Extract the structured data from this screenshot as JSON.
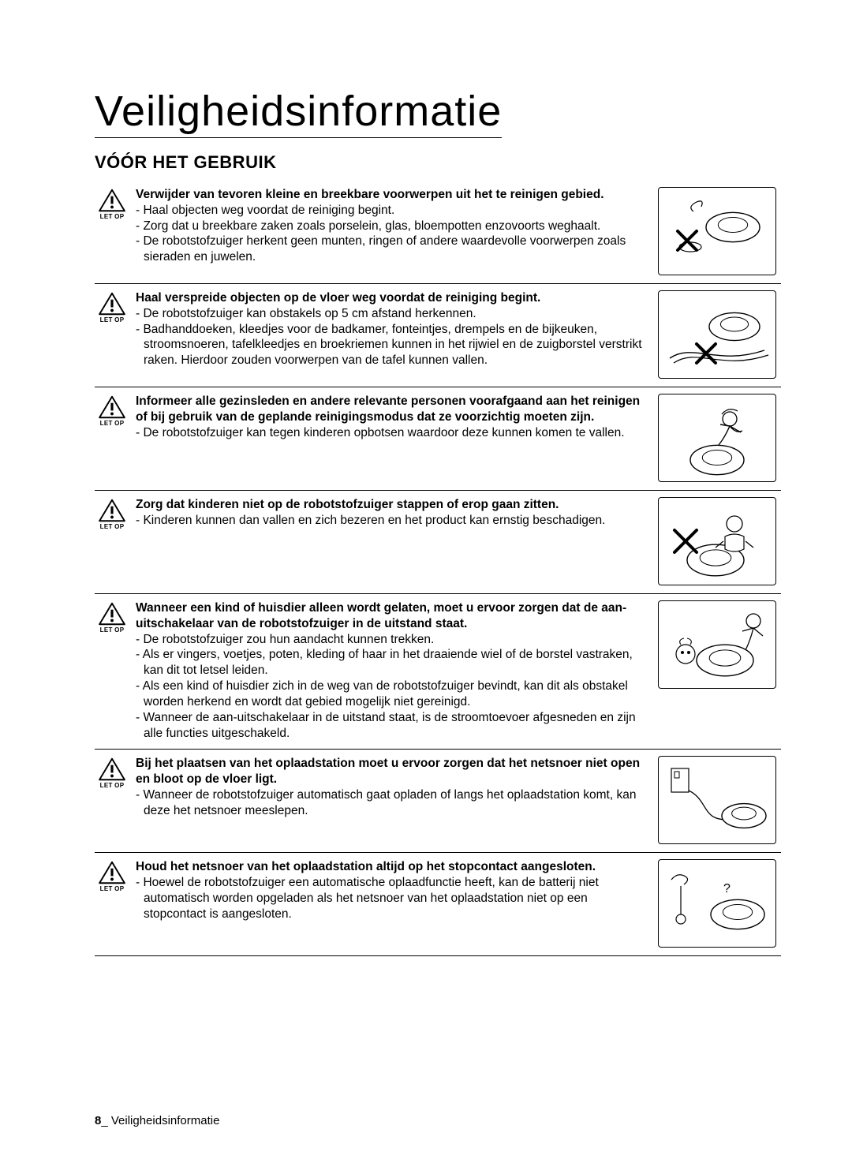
{
  "page_title": "Veiligheidsinformatie",
  "section_heading": "VÓÓR HET GEBRUIK",
  "caution_label": "LET OP",
  "footer_page_number": "8",
  "footer_separator": "_",
  "footer_text": "Veiligheidsinformatie",
  "colors": {
    "text": "#000000",
    "bg": "#ffffff",
    "rule": "#000000"
  },
  "items": [
    {
      "bold": "Verwijder van tevoren kleine en breekbare voorwerpen uit het te reinigen gebied.",
      "lines": [
        "- Haal objecten weg voordat de reiniging begint.",
        "- Zorg dat u breekbare zaken zoals porselein, glas, bloempotten enzovoorts weghaalt.",
        "- De robotstofzuiger herkent geen munten, ringen of andere waardevolle voorwerpen zoals sieraden en juwelen."
      ]
    },
    {
      "bold": "Haal verspreide objecten op de vloer weg voordat de reiniging begint.",
      "lines": [
        "- De robotstofzuiger kan obstakels op 5 cm afstand herkennen.",
        "- Badhanddoeken, kleedjes voor de badkamer, fonteintjes, drempels en de bijkeuken, stroomsnoeren, tafelkleedjes en broekriemen kunnen in het rijwiel en de zuigborstel verstrikt raken. Hierdoor zouden voorwerpen van de tafel kunnen vallen."
      ]
    },
    {
      "bold": "Informeer alle gezinsleden en andere relevante personen voorafgaand aan het reinigen of bij gebruik van de geplande reinigingsmodus dat ze voorzichtig moeten zijn.",
      "lines": [
        "- De robotstofzuiger kan tegen kinderen opbotsen waardoor deze kunnen komen te vallen."
      ]
    },
    {
      "bold": "Zorg dat kinderen niet op de robotstofzuiger stappen of erop gaan zitten.",
      "lines": [
        "- Kinderen kunnen dan vallen en zich bezeren en het product kan ernstig beschadigen."
      ]
    },
    {
      "bold": "Wanneer een kind of huisdier alleen wordt gelaten, moet u ervoor zorgen dat de aan-uitschakelaar van de robotstofzuiger in de uitstand staat.",
      "lines": [
        "- De robotstofzuiger zou hun aandacht kunnen trekken.",
        "- Als er vingers, voetjes, poten, kleding of haar in het draaiende wiel of de borstel vastraken, kan dit tot letsel leiden.",
        "- Als een kind of huisdier zich in de weg van de robotstofzuiger bevindt, kan dit als obstakel worden herkend en wordt dat gebied mogelijk niet gereinigd.",
        "- Wanneer de aan-uitschakelaar in de uitstand staat, is de stroomtoevoer afgesneden en zijn alle functies uitgeschakeld."
      ]
    },
    {
      "bold": "Bij het plaatsen van het oplaadstation moet u ervoor zorgen dat het netsnoer niet open en bloot op de vloer ligt.",
      "lines": [
        "- Wanneer de robotstofzuiger automatisch gaat opladen of langs het oplaadstation komt, kan deze het netsnoer meeslepen."
      ]
    },
    {
      "bold": "Houd het netsnoer van het oplaadstation altijd op het stopcontact aangesloten.",
      "lines": [
        "- Hoewel de robotstofzuiger een automatische oplaadfunctie heeft, kan de batterij niet automatisch worden opgeladen als het netsnoer van het oplaadstation niet op een stopcontact is aangesloten."
      ]
    }
  ]
}
